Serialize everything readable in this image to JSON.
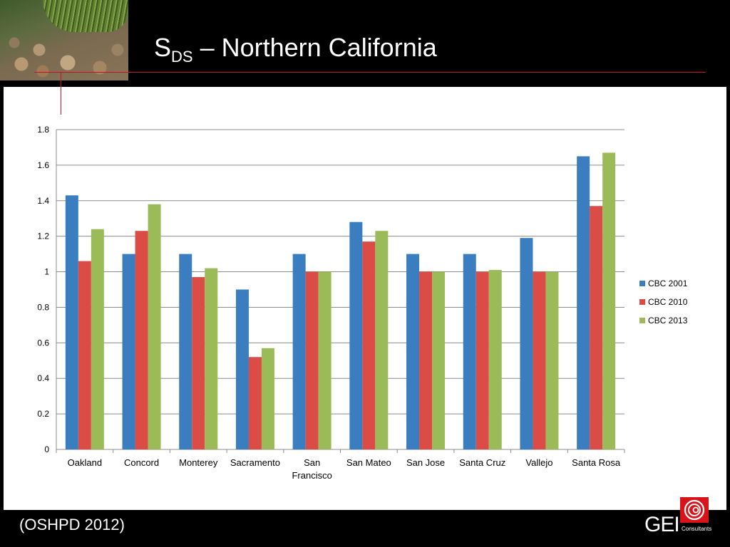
{
  "slide": {
    "title_main": "S",
    "title_sub": "DS",
    "title_rest": " – Northern California",
    "source": "(OSHPD 2012)",
    "logo_text": "GEI",
    "logo_subtext": "Consultants",
    "accent_color": "#c8102e"
  },
  "chart_data": {
    "type": "bar",
    "title": "",
    "xlabel": "",
    "ylabel": "",
    "ylim": [
      0,
      1.8
    ],
    "yticks": [
      "0",
      "0.2",
      "0.4",
      "0.6",
      "0.8",
      "1",
      "1.2",
      "1.4",
      "1.6",
      "1.8"
    ],
    "grid": true,
    "legend_position": "right",
    "categories": [
      "Oakland",
      "Concord",
      "Monterey",
      "Sacramento",
      "San Francisco",
      "San Mateo",
      "San Jose",
      "Santa Cruz",
      "Vallejo",
      "Santa Rosa"
    ],
    "series": [
      {
        "name": "CBC 2001",
        "color": "#3a7ebf",
        "values": [
          1.43,
          1.1,
          1.1,
          0.9,
          1.1,
          1.28,
          1.1,
          1.1,
          1.19,
          1.65
        ]
      },
      {
        "name": "CBC 2010",
        "color": "#dc4c46",
        "values": [
          1.06,
          1.23,
          0.97,
          0.52,
          1.0,
          1.17,
          1.0,
          1.0,
          1.0,
          1.37
        ]
      },
      {
        "name": "CBC 2013",
        "color": "#9bbb59",
        "values": [
          1.24,
          1.38,
          1.02,
          0.57,
          1.0,
          1.23,
          1.0,
          1.01,
          1.0,
          1.67
        ]
      }
    ]
  }
}
